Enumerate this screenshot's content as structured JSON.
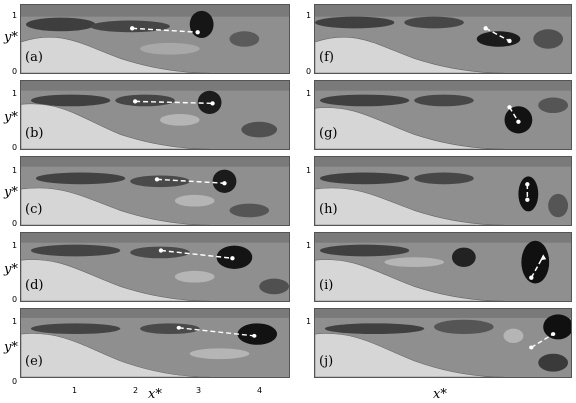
{
  "axes": {
    "y_label": "y*",
    "x_label": "x*",
    "y_ticks": [
      "1",
      "0"
    ],
    "x_ticks": [
      "1",
      "2",
      "3",
      "4"
    ]
  },
  "panels_left": [
    {
      "label": "(a)"
    },
    {
      "label": "(b)"
    },
    {
      "label": "(c)"
    },
    {
      "label": "(d)"
    },
    {
      "label": "(e)"
    }
  ],
  "panels_right": [
    {
      "label": "(f)"
    },
    {
      "label": "(g)"
    },
    {
      "label": "(h)"
    },
    {
      "label": "(i)"
    },
    {
      "label": "(j)"
    }
  ],
  "colors": {
    "field_gray": "#8a8a8a",
    "hill_gray": "#d6d6d6",
    "vortex_dark": "#111111",
    "marker": "#ffffff"
  }
}
